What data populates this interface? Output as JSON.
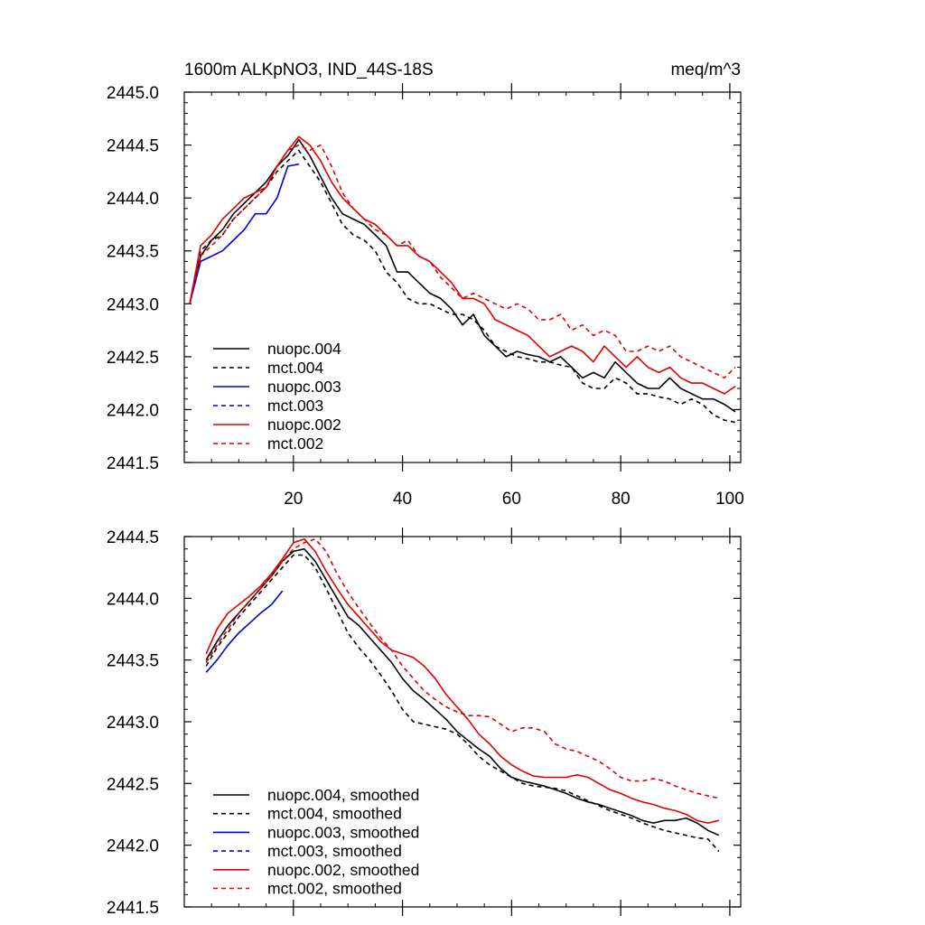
{
  "chart_data": [
    {
      "type": "line",
      "title": "1600m ALKpNO3, IND_44S-18S",
      "units": "meq/m^3",
      "xlim": [
        0,
        102
      ],
      "ylim": [
        2441.5,
        2445.0
      ],
      "xticks": [
        20,
        40,
        60,
        80,
        100
      ],
      "yticks": [
        2441.5,
        2442.0,
        2442.5,
        2443.0,
        2443.5,
        2444.0,
        2444.5,
        2445.0
      ],
      "ytick_labels": [
        "2441.5",
        "2442.0",
        "2442.5",
        "2443.0",
        "2443.5",
        "2444.0",
        "2444.5",
        "2445.0"
      ],
      "xtick_labels": [
        "20",
        "40",
        "60",
        "80",
        "100"
      ],
      "legend_position": "bottom-left",
      "series": [
        {
          "name": "nuopc.004",
          "color": "#000000",
          "dash": "solid",
          "x": [
            1,
            3,
            5,
            7,
            9,
            11,
            13,
            15,
            17,
            19,
            21,
            23,
            25,
            27,
            29,
            31,
            33,
            35,
            37,
            39,
            41,
            43,
            45,
            47,
            49,
            51,
            53,
            55,
            57,
            59,
            61,
            63,
            65,
            67,
            69,
            71,
            73,
            75,
            77,
            79,
            81,
            83,
            85,
            87,
            89,
            91,
            93,
            95,
            97,
            99,
            101
          ],
          "y": [
            2443.0,
            2443.45,
            2443.6,
            2443.7,
            2443.85,
            2443.95,
            2444.05,
            2444.15,
            2444.3,
            2444.4,
            2444.55,
            2444.4,
            2444.2,
            2444.0,
            2443.85,
            2443.8,
            2443.75,
            2443.65,
            2443.55,
            2443.3,
            2443.3,
            2443.2,
            2443.1,
            2443.05,
            2442.95,
            2442.8,
            2442.9,
            2442.7,
            2442.6,
            2442.5,
            2442.55,
            2442.52,
            2442.5,
            2442.45,
            2442.5,
            2442.4,
            2442.3,
            2442.35,
            2442.3,
            2442.45,
            2442.35,
            2442.25,
            2442.2,
            2442.2,
            2442.3,
            2442.2,
            2442.15,
            2442.1,
            2442.1,
            2442.05,
            2441.98
          ]
        },
        {
          "name": "mct.004",
          "color": "#000000",
          "dash": "dashed",
          "x": [
            1,
            3,
            5,
            7,
            9,
            11,
            13,
            15,
            17,
            19,
            21,
            23,
            25,
            27,
            29,
            31,
            33,
            35,
            37,
            39,
            41,
            43,
            45,
            47,
            49,
            51,
            53,
            55,
            57,
            59,
            61,
            63,
            65,
            67,
            69,
            71,
            73,
            75,
            77,
            79,
            81,
            83,
            85,
            87,
            89,
            91,
            93,
            95,
            97,
            99,
            101
          ],
          "y": [
            2443.0,
            2443.5,
            2443.6,
            2443.65,
            2443.8,
            2443.9,
            2444.0,
            2444.1,
            2444.25,
            2444.35,
            2444.45,
            2444.3,
            2444.15,
            2443.95,
            2443.75,
            2443.65,
            2443.6,
            2443.5,
            2443.3,
            2443.2,
            2443.05,
            2443.0,
            2443.0,
            2442.95,
            2442.9,
            2442.9,
            2442.85,
            2442.75,
            2442.6,
            2442.55,
            2442.5,
            2442.48,
            2442.45,
            2442.45,
            2442.42,
            2442.4,
            2442.25,
            2442.2,
            2442.2,
            2442.3,
            2442.25,
            2442.15,
            2442.15,
            2442.12,
            2442.1,
            2442.05,
            2442.1,
            2442.05,
            2441.95,
            2441.9,
            2441.88
          ]
        },
        {
          "name": "nuopc.003",
          "color": "#0000dd",
          "dash": "solid",
          "x": [
            1,
            3,
            5,
            7,
            9,
            11,
            13,
            15,
            17,
            19,
            21
          ],
          "y": [
            2443.0,
            2443.4,
            2443.45,
            2443.5,
            2443.6,
            2443.7,
            2443.85,
            2443.85,
            2444.0,
            2444.3,
            2444.32
          ]
        },
        {
          "name": "mct.003",
          "color": "#0000dd",
          "dash": "dashed",
          "x": [],
          "y": []
        },
        {
          "name": "nuopc.002",
          "color": "#e00000",
          "dash": "solid",
          "x": [
            1,
            3,
            5,
            7,
            9,
            11,
            13,
            15,
            17,
            19,
            21,
            23,
            25,
            27,
            29,
            31,
            33,
            35,
            37,
            39,
            41,
            43,
            45,
            47,
            49,
            51,
            53,
            55,
            57,
            59,
            61,
            63,
            65,
            67,
            69,
            71,
            73,
            75,
            77,
            79,
            81,
            83,
            85,
            87,
            89,
            91,
            93,
            95,
            97,
            99,
            101
          ],
          "y": [
            2443.0,
            2443.55,
            2443.65,
            2443.8,
            2443.9,
            2444.0,
            2444.05,
            2444.1,
            2444.3,
            2444.45,
            2444.58,
            2444.5,
            2444.35,
            2444.15,
            2444.0,
            2443.9,
            2443.8,
            2443.75,
            2443.65,
            2443.55,
            2443.55,
            2443.45,
            2443.4,
            2443.3,
            2443.2,
            2443.05,
            2443.05,
            2443.0,
            2442.85,
            2442.8,
            2442.75,
            2442.7,
            2442.6,
            2442.5,
            2442.55,
            2442.6,
            2442.55,
            2442.45,
            2442.6,
            2442.5,
            2442.4,
            2442.5,
            2442.4,
            2442.35,
            2442.4,
            2442.3,
            2442.25,
            2442.25,
            2442.2,
            2442.15,
            2442.22
          ]
        },
        {
          "name": "mct.002",
          "color": "#e00000",
          "dash": "dashed",
          "x": [
            1,
            3,
            5,
            7,
            9,
            11,
            13,
            15,
            17,
            19,
            21,
            23,
            25,
            27,
            29,
            31,
            33,
            35,
            37,
            39,
            41,
            43,
            45,
            47,
            49,
            51,
            53,
            55,
            57,
            59,
            61,
            63,
            65,
            67,
            69,
            71,
            73,
            75,
            77,
            79,
            81,
            83,
            85,
            87,
            89,
            91,
            93,
            95,
            97,
            99,
            101
          ],
          "y": [
            2443.0,
            2443.45,
            2443.55,
            2443.65,
            2443.8,
            2443.9,
            2444.0,
            2444.1,
            2444.3,
            2444.45,
            2444.5,
            2444.45,
            2444.5,
            2444.3,
            2444.05,
            2443.9,
            2443.8,
            2443.7,
            2443.65,
            2443.55,
            2443.6,
            2443.45,
            2443.4,
            2443.25,
            2443.15,
            2443.05,
            2443.1,
            2443.05,
            2443.0,
            2442.95,
            2443.0,
            2442.95,
            2442.85,
            2442.85,
            2442.9,
            2442.75,
            2442.8,
            2442.7,
            2442.75,
            2442.7,
            2442.55,
            2442.55,
            2442.6,
            2442.55,
            2442.6,
            2442.5,
            2442.45,
            2442.4,
            2442.35,
            2442.3,
            2442.4
          ]
        }
      ]
    },
    {
      "type": "line",
      "xlim": [
        0,
        102
      ],
      "ylim": [
        2441.5,
        2444.5
      ],
      "xticks": [
        20,
        40,
        60,
        80,
        100
      ],
      "yticks": [
        2441.5,
        2442.0,
        2442.5,
        2443.0,
        2443.5,
        2444.0,
        2444.5
      ],
      "ytick_labels": [
        "2441.5",
        "2442.0",
        "2442.5",
        "2443.0",
        "2443.5",
        "2444.0",
        "2444.5"
      ],
      "legend_position": "bottom-left",
      "series": [
        {
          "name": "nuopc.004, smoothed",
          "color": "#000000",
          "dash": "solid",
          "x": [
            4,
            6,
            8,
            10,
            12,
            14,
            16,
            18,
            20,
            22,
            24,
            26,
            28,
            30,
            32,
            34,
            36,
            38,
            40,
            42,
            44,
            46,
            48,
            50,
            52,
            54,
            56,
            58,
            60,
            62,
            64,
            66,
            68,
            70,
            72,
            74,
            76,
            78,
            80,
            82,
            84,
            86,
            88,
            90,
            92,
            94,
            96,
            98
          ],
          "y": [
            2443.5,
            2443.65,
            2443.78,
            2443.88,
            2443.98,
            2444.08,
            2444.18,
            2444.3,
            2444.38,
            2444.4,
            2444.3,
            2444.15,
            2444.0,
            2443.85,
            2443.78,
            2443.68,
            2443.58,
            2443.48,
            2443.35,
            2443.25,
            2443.18,
            2443.1,
            2443.02,
            2442.92,
            2442.85,
            2442.78,
            2442.72,
            2442.62,
            2442.55,
            2442.52,
            2442.5,
            2442.48,
            2442.45,
            2442.42,
            2442.38,
            2442.35,
            2442.33,
            2442.3,
            2442.27,
            2442.24,
            2442.2,
            2442.18,
            2442.2,
            2442.2,
            2442.22,
            2442.18,
            2442.12,
            2442.08
          ]
        },
        {
          "name": "mct.004, smoothed",
          "color": "#000000",
          "dash": "dashed",
          "x": [
            4,
            6,
            8,
            10,
            12,
            14,
            16,
            18,
            20,
            22,
            24,
            26,
            28,
            30,
            32,
            34,
            36,
            38,
            40,
            42,
            44,
            46,
            48,
            50,
            52,
            54,
            56,
            58,
            60,
            62,
            64,
            66,
            68,
            70,
            72,
            74,
            76,
            78,
            80,
            82,
            84,
            86,
            88,
            90,
            92,
            94,
            96,
            98
          ],
          "y": [
            2443.45,
            2443.6,
            2443.72,
            2443.85,
            2443.95,
            2444.05,
            2444.15,
            2444.25,
            2444.35,
            2444.35,
            2444.25,
            2444.08,
            2443.9,
            2443.72,
            2443.6,
            2443.5,
            2443.38,
            2443.25,
            2443.1,
            2443.0,
            2442.98,
            2442.96,
            2442.94,
            2442.9,
            2442.82,
            2442.72,
            2442.65,
            2442.6,
            2442.55,
            2442.5,
            2442.48,
            2442.47,
            2442.46,
            2442.44,
            2442.4,
            2442.36,
            2442.32,
            2442.28,
            2442.25,
            2442.22,
            2442.18,
            2442.15,
            2442.12,
            2442.1,
            2442.08,
            2442.06,
            2442.05,
            2441.95
          ]
        },
        {
          "name": "nuopc.003, smoothed",
          "color": "#0000dd",
          "dash": "solid",
          "x": [
            4,
            6,
            8,
            10,
            12,
            14,
            16,
            18
          ],
          "y": [
            2443.4,
            2443.5,
            2443.62,
            2443.72,
            2443.8,
            2443.88,
            2443.95,
            2444.06
          ]
        },
        {
          "name": "mct.003, smoothed",
          "color": "#0000dd",
          "dash": "dashed",
          "x": [],
          "y": []
        },
        {
          "name": "nuopc.002, smoothed",
          "color": "#e00000",
          "dash": "solid",
          "x": [
            4,
            6,
            8,
            10,
            12,
            14,
            16,
            18,
            20,
            22,
            24,
            26,
            28,
            30,
            32,
            34,
            36,
            38,
            40,
            42,
            44,
            46,
            48,
            50,
            52,
            54,
            56,
            58,
            60,
            62,
            64,
            66,
            68,
            70,
            72,
            74,
            76,
            78,
            80,
            82,
            84,
            86,
            88,
            90,
            92,
            94,
            96,
            98
          ],
          "y": [
            2443.55,
            2443.75,
            2443.88,
            2443.95,
            2444.02,
            2444.1,
            2444.2,
            2444.32,
            2444.45,
            2444.48,
            2444.38,
            2444.22,
            2444.08,
            2443.95,
            2443.85,
            2443.75,
            2443.65,
            2443.58,
            2443.55,
            2443.52,
            2443.45,
            2443.35,
            2443.22,
            2443.12,
            2443.02,
            2442.9,
            2442.82,
            2442.72,
            2442.65,
            2442.6,
            2442.56,
            2442.55,
            2442.55,
            2442.55,
            2442.57,
            2442.55,
            2442.5,
            2442.45,
            2442.42,
            2442.38,
            2442.35,
            2442.33,
            2442.3,
            2442.28,
            2442.25,
            2442.2,
            2442.18,
            2442.2
          ]
        },
        {
          "name": "mct.002, smoothed",
          "color": "#e00000",
          "dash": "dashed",
          "x": [
            4,
            6,
            8,
            10,
            12,
            14,
            16,
            18,
            20,
            22,
            24,
            26,
            28,
            30,
            32,
            34,
            36,
            38,
            40,
            42,
            44,
            46,
            48,
            50,
            52,
            54,
            56,
            58,
            60,
            62,
            64,
            66,
            68,
            70,
            72,
            74,
            76,
            78,
            80,
            82,
            84,
            86,
            88,
            90,
            92,
            94,
            96,
            98
          ],
          "y": [
            2443.48,
            2443.62,
            2443.75,
            2443.88,
            2443.98,
            2444.08,
            2444.18,
            2444.3,
            2444.4,
            2444.45,
            2444.48,
            2444.38,
            2444.2,
            2444.05,
            2443.92,
            2443.8,
            2443.68,
            2443.58,
            2443.45,
            2443.35,
            2443.25,
            2443.18,
            2443.12,
            2443.08,
            2443.05,
            2443.05,
            2443.04,
            2442.98,
            2442.92,
            2442.95,
            2442.95,
            2442.92,
            2442.82,
            2442.78,
            2442.76,
            2442.72,
            2442.68,
            2442.62,
            2442.55,
            2442.52,
            2442.52,
            2442.54,
            2442.52,
            2442.48,
            2442.45,
            2442.42,
            2442.4,
            2442.38
          ]
        }
      ]
    }
  ]
}
